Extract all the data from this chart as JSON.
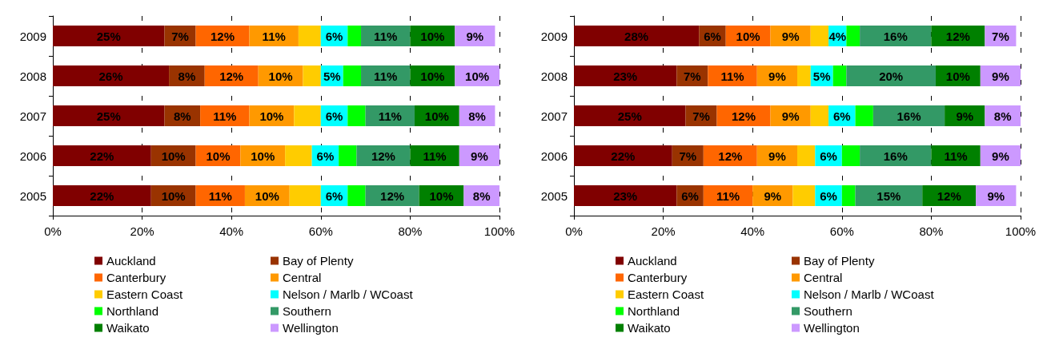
{
  "chart_data": [
    {
      "type": "bar",
      "orientation": "horizontal",
      "stacked": true,
      "categories": [
        "2009",
        "2008",
        "2007",
        "2006",
        "2005"
      ],
      "xlim": [
        0,
        100
      ],
      "xticks": [
        {
          "value": 0,
          "label": "0%"
        },
        {
          "value": 20,
          "label": "20%"
        },
        {
          "value": 40,
          "label": "40%"
        },
        {
          "value": 60,
          "label": "60%"
        },
        {
          "value": 80,
          "label": "80%"
        },
        {
          "value": 100,
          "label": "100%"
        }
      ],
      "grid": "x",
      "legend": "bottom",
      "series": [
        {
          "name": "Auckland",
          "color": "#800000",
          "values": [
            25,
            26,
            25,
            22,
            22
          ],
          "value_labels": [
            "25%",
            "26%",
            "25%",
            "22%",
            "22%"
          ]
        },
        {
          "name": "Bay of Plenty",
          "color": "#993300",
          "values": [
            7,
            8,
            8,
            10,
            10
          ],
          "value_labels": [
            "7%",
            "8%",
            "8%",
            "10%",
            "10%"
          ]
        },
        {
          "name": "Canterbury",
          "color": "#ff6600",
          "values": [
            12,
            12,
            11,
            10,
            11
          ],
          "value_labels": [
            "12%",
            "12%",
            "11%",
            "10%",
            "11%"
          ]
        },
        {
          "name": "Central",
          "color": "#ff9900",
          "values": [
            11,
            10,
            10,
            10,
            10
          ],
          "value_labels": [
            "11%",
            "10%",
            "10%",
            "10%",
            "10%"
          ]
        },
        {
          "name": "Eastern Coast",
          "color": "#ffcc00",
          "values": [
            5,
            4,
            6,
            6,
            7
          ],
          "value_labels": [
            null,
            null,
            null,
            null,
            null
          ]
        },
        {
          "name": "Nelson / Marlb / WCoast",
          "color": "#00ffff",
          "values": [
            6,
            5,
            6,
            6,
            6
          ],
          "value_labels": [
            "6%",
            "5%",
            "6%",
            "6%",
            "6%"
          ]
        },
        {
          "name": "Northland",
          "color": "#00ff00",
          "values": [
            3,
            4,
            4,
            4,
            4
          ],
          "value_labels": [
            null,
            null,
            null,
            null,
            null
          ]
        },
        {
          "name": "Southern",
          "color": "#339966",
          "values": [
            11,
            11,
            11,
            12,
            12
          ],
          "value_labels": [
            "11%",
            "11%",
            "11%",
            "12%",
            "12%"
          ]
        },
        {
          "name": "Waikato",
          "color": "#008000",
          "values": [
            10,
            10,
            10,
            11,
            10
          ],
          "value_labels": [
            "10%",
            "10%",
            "10%",
            "11%",
            "10%"
          ]
        },
        {
          "name": "Wellington",
          "color": "#cc99ff",
          "values": [
            9,
            10,
            8,
            9,
            8
          ],
          "value_labels": [
            "9%",
            "10%",
            "8%",
            "9%",
            "8%"
          ]
        }
      ]
    },
    {
      "type": "bar",
      "orientation": "horizontal",
      "stacked": true,
      "categories": [
        "2009",
        "2008",
        "2007",
        "2006",
        "2005"
      ],
      "xlim": [
        0,
        100
      ],
      "xticks": [
        {
          "value": 0,
          "label": "0%"
        },
        {
          "value": 20,
          "label": "20%"
        },
        {
          "value": 40,
          "label": "40%"
        },
        {
          "value": 60,
          "label": "60%"
        },
        {
          "value": 80,
          "label": "80%"
        },
        {
          "value": 100,
          "label": "100%"
        }
      ],
      "grid": "x",
      "legend": "bottom",
      "series": [
        {
          "name": "Auckland",
          "color": "#800000",
          "values": [
            28,
            23,
            25,
            22,
            23
          ],
          "value_labels": [
            "28%",
            "23%",
            "25%",
            "22%",
            "23%"
          ]
        },
        {
          "name": "Bay of Plenty",
          "color": "#993300",
          "values": [
            6,
            7,
            7,
            7,
            6
          ],
          "value_labels": [
            "6%",
            "7%",
            "7%",
            "7%",
            "6%"
          ]
        },
        {
          "name": "Canterbury",
          "color": "#ff6600",
          "values": [
            10,
            11,
            12,
            12,
            11
          ],
          "value_labels": [
            "10%",
            "11%",
            "12%",
            "12%",
            "11%"
          ]
        },
        {
          "name": "Central",
          "color": "#ff9900",
          "values": [
            9,
            9,
            9,
            9,
            9
          ],
          "value_labels": [
            "9%",
            "9%",
            "9%",
            "9%",
            "9%"
          ]
        },
        {
          "name": "Eastern Coast",
          "color": "#ffcc00",
          "values": [
            4,
            3,
            4,
            4,
            5
          ],
          "value_labels": [
            null,
            null,
            null,
            null,
            null
          ]
        },
        {
          "name": "Nelson / Marlb / WCoast",
          "color": "#00ffff",
          "values": [
            4,
            5,
            6,
            6,
            6
          ],
          "value_labels": [
            "4%",
            "5%",
            "6%",
            "6%",
            "6%"
          ]
        },
        {
          "name": "Northland",
          "color": "#00ff00",
          "values": [
            3,
            3,
            4,
            4,
            3
          ],
          "value_labels": [
            null,
            null,
            null,
            null,
            null
          ]
        },
        {
          "name": "Southern",
          "color": "#339966",
          "values": [
            16,
            20,
            16,
            16,
            15
          ],
          "value_labels": [
            "16%",
            "20%",
            "16%",
            "16%",
            "15%"
          ]
        },
        {
          "name": "Waikato",
          "color": "#008000",
          "values": [
            12,
            10,
            9,
            11,
            12
          ],
          "value_labels": [
            "12%",
            "10%",
            "9%",
            "11%",
            "12%"
          ]
        },
        {
          "name": "Wellington",
          "color": "#cc99ff",
          "values": [
            7,
            9,
            8,
            9,
            9
          ],
          "value_labels": [
            "7%",
            "9%",
            "8%",
            "9%",
            "9%"
          ]
        }
      ]
    }
  ]
}
